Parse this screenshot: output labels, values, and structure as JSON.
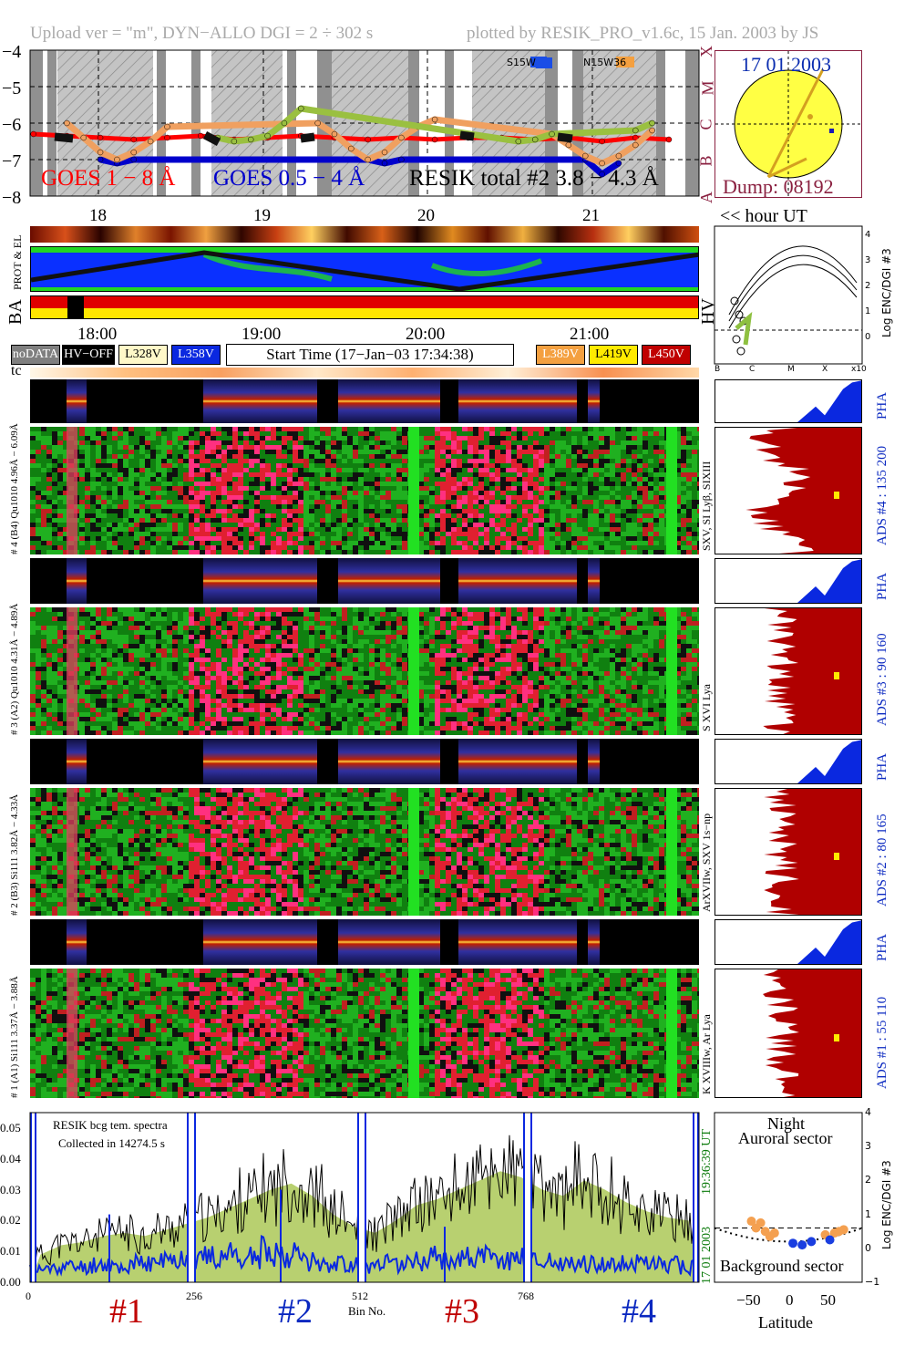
{
  "header": {
    "upload": "Upload ver = \"m\", DYN−ALLO DGI =   2 ÷ 302 s",
    "plotted": "plotted by RESIK_PRO_v1.6c, 15 Jan. 2003 by JS"
  },
  "goes_panel": {
    "yticks": [
      "−4",
      "−5",
      "−6",
      "−7",
      "−8"
    ],
    "class_labels": [
      "X",
      "M",
      "C",
      "B",
      "A"
    ],
    "legend_goes18": "GOES 1 − 8 Å",
    "legend_goes054": "GOES 0.5 − 4 Å",
    "legend_resik": "RESIK total #2  3.8 − 4.3 Å",
    "region1": "S15W",
    "region2": "N15W36",
    "series": [
      {
        "name": "GOES 1 − 8 Å",
        "color": "#ff0000",
        "x": [
          17.6,
          17.8,
          18.0,
          18.2,
          18.4,
          18.6,
          18.8,
          19.0,
          19.2,
          19.4,
          19.6,
          19.8,
          20.0,
          20.2,
          20.4,
          20.6,
          20.8,
          21.0,
          21.2,
          21.4
        ],
        "y": [
          -6.3,
          -6.35,
          -6.4,
          -6.45,
          -6.4,
          -6.35,
          -6.45,
          -6.4,
          -6.35,
          -6.4,
          -6.45,
          -6.4,
          -6.45,
          -6.4,
          -6.4,
          -6.45,
          -6.4,
          -6.5,
          -6.4,
          -6.45
        ]
      },
      {
        "name": "GOES 0.5 − 4 Å",
        "color": "#0000cc",
        "x": [
          18.0,
          18.1,
          18.2,
          19.6,
          19.7,
          19.8,
          20.9,
          21.0,
          21.1
        ],
        "y": [
          -7.0,
          -7.1,
          -7.0,
          -7.0,
          -7.1,
          -7.0,
          -7.0,
          -7.4,
          -7.1
        ]
      },
      {
        "name": "RESIK total #2  3.8 − 4.3 Å",
        "color": "#f0a060",
        "x": [
          17.8,
          17.9,
          18.0,
          18.1,
          18.2,
          18.3,
          18.4,
          19.3,
          19.4,
          19.5,
          19.6,
          19.7,
          19.8,
          19.9,
          20.0,
          20.7,
          20.8,
          20.9,
          21.0,
          21.1,
          21.2,
          21.3
        ],
        "y": [
          -6.0,
          -6.4,
          -6.8,
          -7.0,
          -6.8,
          -6.5,
          -6.1,
          -6.0,
          -6.3,
          -6.7,
          -7.0,
          -6.8,
          -6.4,
          -6.1,
          -5.9,
          -6.3,
          -6.6,
          -6.9,
          -7.1,
          -6.9,
          -6.6,
          -6.2
        ]
      },
      {
        "name": "green",
        "color": "#9ac040",
        "x": [
          18.7,
          18.8,
          18.9,
          19.0,
          19.1,
          19.2,
          20.5,
          20.6,
          20.7,
          21.2,
          21.3
        ],
        "y": [
          -6.4,
          -6.5,
          -6.45,
          -6.35,
          -6.0,
          -5.6,
          -6.5,
          -6.45,
          -6.3,
          -6.2,
          -6.0
        ]
      }
    ]
  },
  "sun": {
    "date": "17 01 2003",
    "dump": "Dump: 08192"
  },
  "hour_ut": {
    "ticks": [
      "18",
      "19",
      "20",
      "21"
    ],
    "label": "<< hour UT"
  },
  "side_labels": {
    "prot_el": "PROT & EL",
    "ba": "BA",
    "hv": "HV",
    "tc": "tc"
  },
  "hv_plot": {
    "yticks": [
      "4",
      "3",
      "2",
      "1",
      "0"
    ],
    "xticks": [
      "B",
      "C",
      "M",
      "X",
      "x10"
    ],
    "ylabel": "Log ENC/DGI #3"
  },
  "time_axis": {
    "ticks": [
      "18:00",
      "19:00",
      "20:00",
      "21:00"
    ]
  },
  "legend_boxes": {
    "nodata": "noDATA",
    "hvoff": "HV−OFF",
    "l328": "L328V",
    "l358": "L358V",
    "start": "Start Time (17−Jan−03 17:34:38)",
    "l389": "L389V",
    "l419": "L419V",
    "l450": "L450V"
  },
  "channels": [
    {
      "left": "# 4 (B4) Qu1010 4.96Å − 6.09Å",
      "lines": "SXV, SI Lyβ, SIXIII",
      "ads": "ADS #4 :  135 200",
      "pha": "PHA"
    },
    {
      "left": "# 3 (A2) Qu1010 4.31Å − 4.89Å",
      "lines": "S XVI Lya",
      "ads": "ADS #3 :   90 160",
      "pha": "PHA"
    },
    {
      "left": "# 2 (B3) Si111 3.82Å − 4.33Å",
      "lines": "ArXVIIw, SXV 1s−np",
      "ads": "ADS #2 :   80 165",
      "pha": "PHA"
    },
    {
      "left": "# 1 (A1) Si111 3.37Å − 3.88Å",
      "lines": "K XVIIIw, Ar Lya",
      "ads": "ADS #1 :   55 110",
      "pha": "PHA"
    }
  ],
  "spectrum": {
    "note1": "RESIK bcg tem. spectra",
    "note2": "Collected in 14274.5 s",
    "yticks": [
      "0.05",
      "0.04",
      "0.03",
      "0.02",
      "0.01",
      "0.00"
    ],
    "xticks": [
      "0",
      "256",
      "512",
      "768"
    ],
    "xlabel": "Bin No.",
    "timestamp": "19:36:39 UT",
    "date": "17 01 2003",
    "sections": [
      "#1",
      "#2",
      "#3",
      "#4"
    ]
  },
  "aurora": {
    "night": "Night",
    "auroral": "Auroral sector",
    "background": "Background sector",
    "yticks": [
      "4",
      "3",
      "2",
      "1",
      "0",
      "−1"
    ],
    "xticks": [
      "−50",
      "0",
      "50"
    ],
    "xlabel": "Latitude",
    "ylabel": "Log ENC/DGI #3"
  },
  "chart_data": [
    {
      "type": "line",
      "title": "",
      "xlabel": "hour UT",
      "ylabel": "",
      "xlim": [
        17.58,
        21.58
      ],
      "ylim": [
        -8,
        -4
      ],
      "series_ref": "goes_panel.series"
    },
    {
      "type": "bar",
      "title": "RESIK bcg tem. spectra",
      "xlabel": "Bin No.",
      "ylabel": "",
      "xlim": [
        0,
        1024
      ],
      "ylim": [
        0,
        0.055
      ],
      "series": [
        {
          "name": "black",
          "values": [
            0.009,
            0.012,
            0.013,
            0.015,
            0.016,
            0.015,
            0.017,
            0.019,
            0.021,
            0.024,
            0.027,
            0.03,
            0.032,
            0.028,
            0.022,
            0.018,
            0.016,
            0.02,
            0.025,
            0.027,
            0.03,
            0.033,
            0.036,
            0.034,
            0.03,
            0.028,
            0.033,
            0.03,
            0.026,
            0.023,
            0.021,
            0.02
          ]
        },
        {
          "name": "blue",
          "values": [
            0.004,
            0.005,
            0.005,
            0.006,
            0.005,
            0.006,
            0.007,
            0.008,
            0.008,
            0.009,
            0.008,
            0.01,
            0.009,
            0.007,
            0.006,
            0.006,
            0.005,
            0.006,
            0.007,
            0.008,
            0.008,
            0.008,
            0.007,
            0.008,
            0.007,
            0.006,
            0.006,
            0.006,
            0.006,
            0.006,
            0.006,
            0.005
          ]
        }
      ]
    },
    {
      "type": "scatter",
      "title": "",
      "xlabel": "Latitude",
      "ylabel": "Log ENC/DGI #3",
      "xlim": [
        -80,
        80
      ],
      "ylim": [
        -1,
        4
      ],
      "series": [
        {
          "name": "orange",
          "x": [
            -40,
            -35,
            -30,
            -25,
            -20,
            -15,
            40,
            50,
            55,
            60
          ],
          "y": [
            0.8,
            0.6,
            0.75,
            0.5,
            0.35,
            0.45,
            0.4,
            0.45,
            0.5,
            0.55
          ]
        },
        {
          "name": "blue",
          "x": [
            5,
            15,
            25,
            45
          ],
          "y": [
            0.15,
            0.1,
            0.2,
            0.25
          ]
        }
      ]
    }
  ]
}
